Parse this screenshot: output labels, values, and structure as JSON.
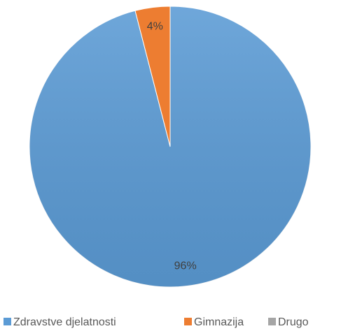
{
  "chart_data": {
    "type": "pie",
    "categories": [
      "Zdravstve djelatnosti",
      "Gimnazija",
      "Drugo"
    ],
    "values": [
      96,
      4,
      0
    ],
    "value_labels": [
      "96%",
      "4%",
      null
    ],
    "colors": [
      "#5b9bd5",
      "#ed7d31",
      "#a5a5a5"
    ],
    "legend": "bottom"
  }
}
